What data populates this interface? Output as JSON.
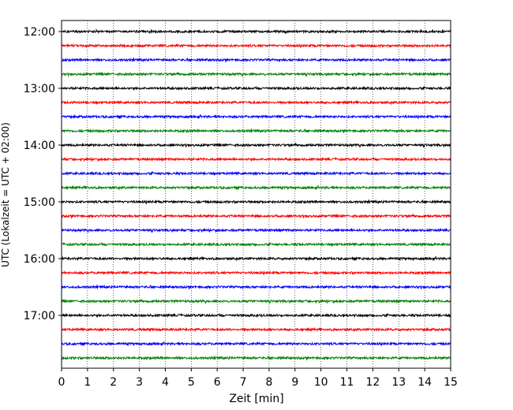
{
  "chart_data": {
    "type": "line",
    "title": "",
    "xlabel": "Zeit  [min]",
    "ylabel": "UTC (Lokalzeit = UTC + 02:00)",
    "xlim": [
      0,
      15
    ],
    "x_ticks": [
      "0",
      "1",
      "2",
      "3",
      "4",
      "5",
      "6",
      "7",
      "8",
      "9",
      "10",
      "11",
      "12",
      "13",
      "14",
      "15"
    ],
    "y_ticks": [
      "12:00",
      "13:00",
      "14:00",
      "15:00",
      "16:00",
      "17:00"
    ],
    "trace_interval_minutes": 15,
    "start_time": "12:00",
    "trace_count": 24,
    "trace_colors": [
      "#000000",
      "#ff0000",
      "#0000ff",
      "#008000"
    ],
    "vertical_grid": "dotted",
    "legend": "none"
  }
}
